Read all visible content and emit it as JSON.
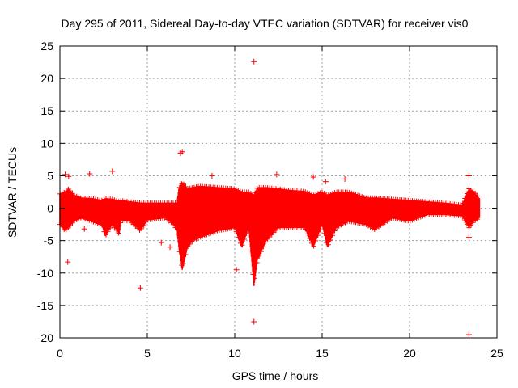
{
  "chart_data": {
    "type": "scatter",
    "title": "Day 295 of 2011, Sidereal Day-to-day VTEC variation (SDTVAR) for receiver vis0",
    "xlabel": "GPS time / hours",
    "ylabel": "SDTVAR / TECUs",
    "xlim": [
      0,
      25
    ],
    "ylim": [
      -20,
      25
    ],
    "xticks": [
      0,
      5,
      10,
      15,
      20,
      25
    ],
    "yticks": [
      -20,
      -15,
      -10,
      -5,
      0,
      5,
      10,
      15,
      20,
      25
    ],
    "grid": true,
    "marker": "+",
    "color": "#ff0000",
    "series": [
      {
        "name": "SDTVAR",
        "band": [
          [
            0.0,
            -2.5,
            2.2
          ],
          [
            0.3,
            -3.5,
            2.5
          ],
          [
            0.5,
            -3.0,
            3.0
          ],
          [
            0.8,
            -2.0,
            2.0
          ],
          [
            1.2,
            -1.5,
            1.6
          ],
          [
            1.8,
            -2.0,
            1.5
          ],
          [
            2.4,
            -2.6,
            1.2
          ],
          [
            2.6,
            -4.3,
            1.5
          ],
          [
            3.0,
            -2.5,
            1.4
          ],
          [
            3.5,
            -1.8,
            1.2
          ],
          [
            3.4,
            -4.0,
            1.0
          ],
          [
            4.0,
            -2.0,
            1.0
          ],
          [
            4.6,
            -3.5,
            0.8
          ],
          [
            5.0,
            -1.8,
            0.8
          ],
          [
            6.0,
            -1.5,
            0.8
          ],
          [
            6.5,
            -2.5,
            0.8
          ],
          [
            6.7,
            -3.5,
            0.8
          ],
          [
            6.8,
            -6.0,
            3.0
          ],
          [
            7.0,
            -9.5,
            4.0
          ],
          [
            7.3,
            -6.0,
            3.0
          ],
          [
            7.6,
            -5.0,
            3.2
          ],
          [
            8.0,
            -4.5,
            3.4
          ],
          [
            9.0,
            -3.5,
            3.2
          ],
          [
            10.0,
            -3.0,
            3.0
          ],
          [
            10.4,
            -6.0,
            2.5
          ],
          [
            10.8,
            -3.0,
            2.5
          ],
          [
            11.1,
            -12.0,
            2.0
          ],
          [
            11.3,
            -8.0,
            3.2
          ],
          [
            11.8,
            -5.0,
            3.2
          ],
          [
            12.5,
            -3.0,
            3.0
          ],
          [
            13.0,
            -3.0,
            2.8
          ],
          [
            14.0,
            -3.0,
            2.6
          ],
          [
            14.5,
            -6.0,
            2.0
          ],
          [
            15.0,
            -2.5,
            2.5
          ],
          [
            15.3,
            -6.0,
            2.0
          ],
          [
            15.8,
            -3.0,
            2.5
          ],
          [
            16.5,
            -2.0,
            2.5
          ],
          [
            17.5,
            -2.5,
            1.6
          ],
          [
            18.0,
            -3.3,
            1.6
          ],
          [
            19.0,
            -1.5,
            1.4
          ],
          [
            20.0,
            -2.0,
            1.2
          ],
          [
            21.0,
            -1.0,
            1.0
          ],
          [
            22.0,
            -1.0,
            0.8
          ],
          [
            23.0,
            -1.2,
            0.5
          ],
          [
            23.4,
            -3.0,
            3.0
          ],
          [
            23.7,
            -2.0,
            2.5
          ],
          [
            24.0,
            -1.5,
            1.5
          ]
        ],
        "outliers": [
          [
            0.3,
            5.2
          ],
          [
            0.5,
            4.9
          ],
          [
            0.45,
            -8.3
          ],
          [
            1.4,
            -3.2
          ],
          [
            1.7,
            5.3
          ],
          [
            3.0,
            5.7
          ],
          [
            4.6,
            -12.3
          ],
          [
            5.8,
            -5.3
          ],
          [
            6.3,
            -6.0
          ],
          [
            6.9,
            8.5
          ],
          [
            7.0,
            8.7
          ],
          [
            8.7,
            5.0
          ],
          [
            9.1,
            3.0
          ],
          [
            10.1,
            -9.5
          ],
          [
            11.1,
            22.6
          ],
          [
            11.1,
            -17.5
          ],
          [
            12.4,
            5.2
          ],
          [
            14.5,
            4.8
          ],
          [
            15.2,
            4.1
          ],
          [
            16.3,
            4.5
          ],
          [
            23.4,
            -19.5
          ],
          [
            23.4,
            5.0
          ],
          [
            23.4,
            -4.5
          ]
        ]
      }
    ]
  }
}
